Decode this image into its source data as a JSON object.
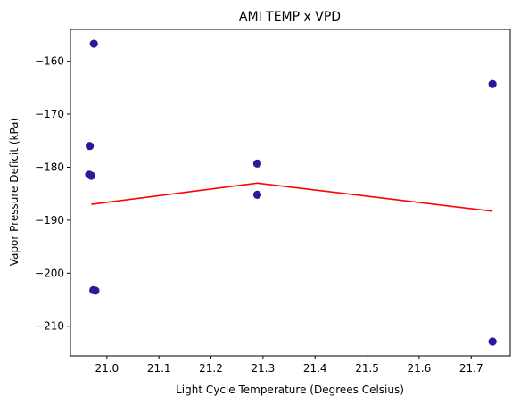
{
  "chart_data": {
    "type": "scatter",
    "title": "AMI TEMP x VPD",
    "xlabel": "Light Cycle Temperature (Degrees Celsius)",
    "ylabel": "Vapor Pressure Deficit (kPa)",
    "xlim": [
      20.93,
      21.775
    ],
    "ylim": [
      -215.6,
      -154.0
    ],
    "xticks": [
      21.0,
      21.1,
      21.2,
      21.3,
      21.4,
      21.5,
      21.6,
      21.7
    ],
    "xtick_labels": [
      "21.0",
      "21.1",
      "21.2",
      "21.3",
      "21.4",
      "21.5",
      "21.6",
      "21.7"
    ],
    "yticks": [
      -160,
      -170,
      -180,
      -190,
      -200,
      -210
    ],
    "ytick_labels": [
      "−160",
      "−170",
      "−180",
      "−190",
      "−200",
      "−210"
    ],
    "grid": false,
    "series": [
      {
        "type": "scatter",
        "color": "#2a1a9a",
        "points": [
          {
            "x": 20.975,
            "y": -156.7
          },
          {
            "x": 20.967,
            "y": -176.0
          },
          {
            "x": 20.966,
            "y": -181.4
          },
          {
            "x": 20.97,
            "y": -181.6
          },
          {
            "x": 20.974,
            "y": -203.2
          },
          {
            "x": 20.978,
            "y": -203.3
          },
          {
            "x": 21.289,
            "y": -179.3
          },
          {
            "x": 21.289,
            "y": -185.2
          },
          {
            "x": 21.741,
            "y": -164.3
          },
          {
            "x": 21.741,
            "y": -212.9
          }
        ]
      },
      {
        "type": "line",
        "color": "#ff0000",
        "points": [
          {
            "x": 20.97,
            "y": -187.0
          },
          {
            "x": 21.289,
            "y": -183.0
          },
          {
            "x": 21.741,
            "y": -188.3
          }
        ]
      }
    ]
  }
}
